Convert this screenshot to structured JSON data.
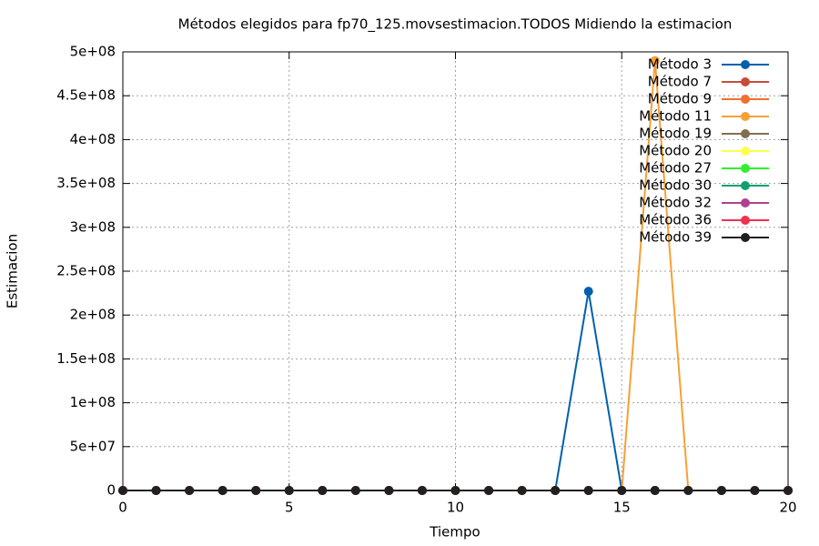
{
  "chart_data": {
    "type": "line",
    "title": "Métodos elegidos para fp70_125.movsestimacion.TODOS Midiendo la estimacion",
    "xlabel": "Tiempo",
    "ylabel": "Estimacion",
    "x": [
      0,
      1,
      2,
      3,
      4,
      5,
      6,
      7,
      8,
      9,
      10,
      11,
      12,
      13,
      14,
      15,
      16,
      17,
      18,
      19,
      20
    ],
    "xlim": [
      0,
      20
    ],
    "xticks": [
      0,
      5,
      10,
      15,
      20
    ],
    "ylim": [
      0,
      500000000
    ],
    "yticks": [
      0,
      {
        "value": 50000000,
        "label": "5e+07"
      },
      {
        "value": 100000000,
        "label": "1e+08"
      },
      {
        "value": 150000000,
        "label": "1.5e+08"
      },
      {
        "value": 200000000,
        "label": "2e+08"
      },
      {
        "value": 250000000,
        "label": "2.5e+08"
      },
      {
        "value": 300000000,
        "label": "3e+08"
      },
      {
        "value": 350000000,
        "label": "3.5e+08"
      },
      {
        "value": 400000000,
        "label": "4e+08"
      },
      {
        "value": 450000000,
        "label": "4.5e+08"
      },
      {
        "value": 500000000,
        "label": "5e+08"
      }
    ],
    "grid": true,
    "legend": "upper right",
    "series": [
      {
        "name": "Método 3",
        "color": "#0060ad",
        "values": [
          0,
          0,
          0,
          0,
          0,
          0,
          0,
          0,
          0,
          0,
          0,
          0,
          0,
          0,
          227000000,
          0,
          0,
          0,
          0,
          0,
          0
        ]
      },
      {
        "name": "Método 7",
        "color": "#c84b3c",
        "values": [
          0,
          0,
          0,
          0,
          0,
          0,
          0,
          0,
          0,
          0,
          0,
          0,
          0,
          0,
          0,
          0,
          0,
          0,
          0,
          0,
          0
        ]
      },
      {
        "name": "Método 9",
        "color": "#f07030",
        "values": [
          0,
          0,
          0,
          0,
          0,
          0,
          0,
          0,
          0,
          0,
          0,
          0,
          0,
          0,
          0,
          0,
          0,
          0,
          0,
          0,
          0
        ]
      },
      {
        "name": "Método 11",
        "color": "#f7a035",
        "values": [
          0,
          0,
          0,
          0,
          0,
          0,
          0,
          0,
          0,
          0,
          0,
          0,
          0,
          0,
          0,
          0,
          490000000,
          0,
          0,
          0,
          0
        ]
      },
      {
        "name": "Método 19",
        "color": "#807050",
        "values": [
          0,
          0,
          0,
          0,
          0,
          0,
          0,
          0,
          0,
          0,
          0,
          0,
          0,
          0,
          0,
          0,
          0,
          0,
          0,
          0,
          0
        ]
      },
      {
        "name": "Método 20",
        "color": "#ffff50",
        "values": [
          0,
          0,
          0,
          0,
          0,
          0,
          0,
          0,
          0,
          0,
          0,
          0,
          0,
          0,
          0,
          0,
          0,
          0,
          0,
          0,
          0
        ]
      },
      {
        "name": "Método 27",
        "color": "#30f030",
        "values": [
          0,
          0,
          0,
          0,
          0,
          0,
          0,
          0,
          0,
          0,
          0,
          0,
          0,
          0,
          0,
          0,
          0,
          0,
          0,
          0,
          0
        ]
      },
      {
        "name": "Método 30",
        "color": "#10a070",
        "values": [
          0,
          0,
          0,
          0,
          0,
          0,
          0,
          0,
          0,
          0,
          0,
          0,
          0,
          0,
          0,
          0,
          0,
          0,
          0,
          0,
          0
        ]
      },
      {
        "name": "Método 32",
        "color": "#b04090",
        "values": [
          0,
          0,
          0,
          0,
          0,
          0,
          0,
          0,
          0,
          0,
          0,
          0,
          0,
          0,
          0,
          0,
          0,
          0,
          0,
          0,
          0
        ]
      },
      {
        "name": "Método 36",
        "color": "#f03050",
        "values": [
          0,
          0,
          0,
          0,
          0,
          0,
          0,
          0,
          0,
          0,
          0,
          0,
          0,
          0,
          0,
          0,
          0,
          0,
          0,
          0,
          0
        ]
      },
      {
        "name": "Método 39",
        "color": "#202020",
        "values": [
          0,
          0,
          0,
          0,
          0,
          0,
          0,
          0,
          0,
          0,
          0,
          0,
          0,
          0,
          0,
          0,
          0,
          0,
          0,
          0,
          0
        ]
      }
    ]
  }
}
